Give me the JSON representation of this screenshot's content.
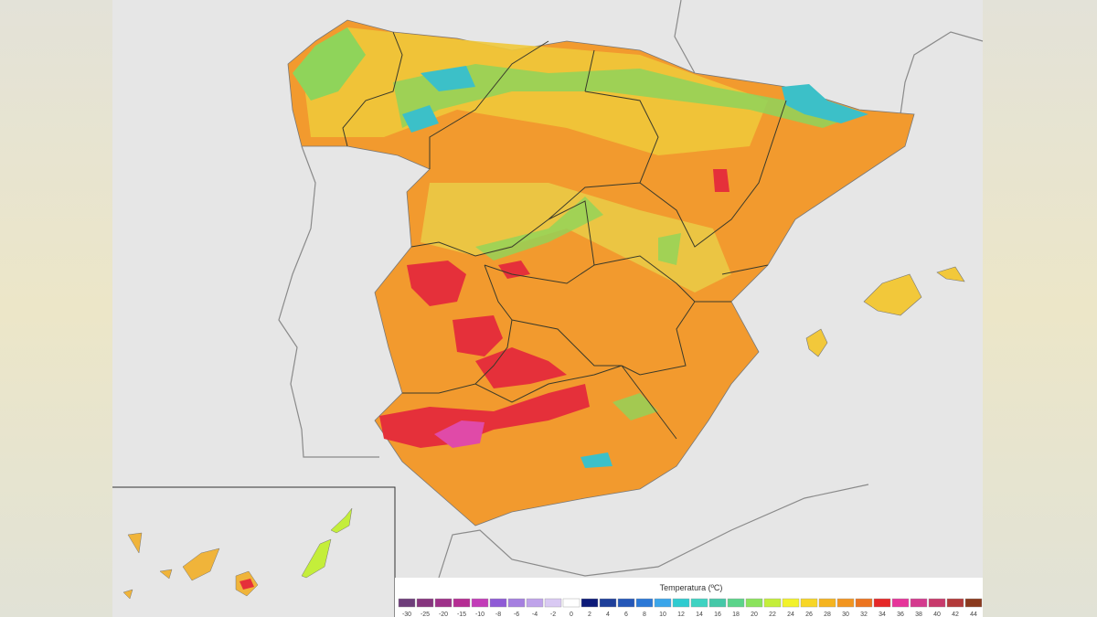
{
  "legend": {
    "title": "Temperatura (ºC)",
    "items": [
      {
        "label": "-30",
        "color": "#6e3d7a"
      },
      {
        "label": "-25",
        "color": "#86357e"
      },
      {
        "label": "-20",
        "color": "#9e3189"
      },
      {
        "label": "-15",
        "color": "#b52d93"
      },
      {
        "label": "-10",
        "color": "#c23cb8"
      },
      {
        "label": "-8",
        "color": "#8f5bd6"
      },
      {
        "label": "-6",
        "color": "#a57fe0"
      },
      {
        "label": "-4",
        "color": "#bfa3ea"
      },
      {
        "label": "-2",
        "color": "#d9c9f3"
      },
      {
        "label": "0",
        "color": "#ffffff"
      },
      {
        "label": "2",
        "color": "#0c1a78"
      },
      {
        "label": "4",
        "color": "#1e3f9a"
      },
      {
        "label": "6",
        "color": "#2457b8"
      },
      {
        "label": "8",
        "color": "#2b78d6"
      },
      {
        "label": "10",
        "color": "#3aa5ea"
      },
      {
        "label": "12",
        "color": "#2fcbd0"
      },
      {
        "label": "14",
        "color": "#3fd3c2"
      },
      {
        "label": "16",
        "color": "#45c8a8"
      },
      {
        "label": "18",
        "color": "#5bd48a"
      },
      {
        "label": "20",
        "color": "#8be35c"
      },
      {
        "label": "22",
        "color": "#c4ee3a"
      },
      {
        "label": "24",
        "color": "#f2f22a"
      },
      {
        "label": "26",
        "color": "#f7d626"
      },
      {
        "label": "28",
        "color": "#f5b420"
      },
      {
        "label": "30",
        "color": "#f29520"
      },
      {
        "label": "32",
        "color": "#ec7420"
      },
      {
        "label": "34",
        "color": "#e52828"
      },
      {
        "label": "36",
        "color": "#e6349a"
      },
      {
        "label": "38",
        "color": "#d43a8e"
      },
      {
        "label": "40",
        "color": "#c83a6c"
      },
      {
        "label": "42",
        "color": "#b23a3a"
      },
      {
        "label": "44",
        "color": "#8a3a1e"
      }
    ]
  }
}
